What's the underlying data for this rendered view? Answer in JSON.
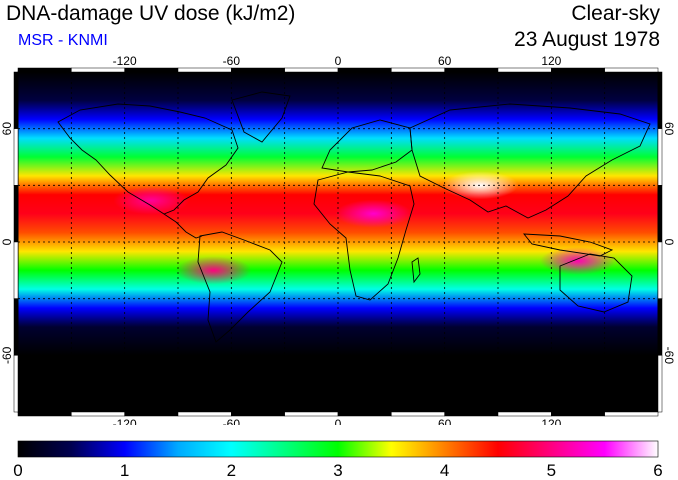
{
  "header": {
    "title": "DNA-damage UV dose (kJ/m2)",
    "subtitle": "MSR - KNMI",
    "condition": "Clear-sky",
    "date": "23 August 1978"
  },
  "map": {
    "projection": "equirectangular",
    "lon_range": [
      -180,
      180
    ],
    "lat_range": [
      -90,
      90
    ],
    "grid_lon_step": 30,
    "grid_lat_step": 30,
    "grid_style": "dotted",
    "lon_ticks": [
      -120,
      -60,
      0,
      60,
      120
    ],
    "lon_tick_labels": [
      "-120",
      "-60",
      "0",
      "60",
      "120"
    ],
    "lat_ticks": [
      60,
      0,
      -60
    ],
    "lat_tick_labels": [
      "60",
      "0",
      "-60"
    ],
    "field_description_note": "",
    "dose_bands": [
      {
        "lat": 90,
        "value": 0.0
      },
      {
        "lat": 75,
        "value": 0.4
      },
      {
        "lat": 65,
        "value": 1.0
      },
      {
        "lat": 55,
        "value": 1.8
      },
      {
        "lat": 45,
        "value": 2.8
      },
      {
        "lat": 35,
        "value": 3.6
      },
      {
        "lat": 25,
        "value": 4.5
      },
      {
        "lat": 15,
        "value": 4.6
      },
      {
        "lat": 5,
        "value": 4.2
      },
      {
        "lat": -5,
        "value": 3.6
      },
      {
        "lat": -15,
        "value": 3.0
      },
      {
        "lat": -25,
        "value": 2.1
      },
      {
        "lat": -35,
        "value": 1.0
      },
      {
        "lat": -45,
        "value": 0.3
      },
      {
        "lat": -60,
        "value": 0.0
      },
      {
        "lat": -90,
        "value": 0.0
      }
    ],
    "hotspots": [
      {
        "lon": 80,
        "lat": 30,
        "value": 6.0
      },
      {
        "lon": 20,
        "lat": 15,
        "value": 5.3
      },
      {
        "lon": -105,
        "lat": 22,
        "value": 5.1
      },
      {
        "lon": 135,
        "lat": -10,
        "value": 5.2
      },
      {
        "lon": -70,
        "lat": -15,
        "value": 5.0
      }
    ]
  },
  "colorbar": {
    "min": 0,
    "max": 6,
    "tick_labels": [
      "0",
      "1",
      "2",
      "3",
      "4",
      "5",
      "6"
    ],
    "stops": [
      {
        "value": 0.0,
        "color": "#000000"
      },
      {
        "value": 0.5,
        "color": "#000050"
      },
      {
        "value": 1.0,
        "color": "#0000ff"
      },
      {
        "value": 1.5,
        "color": "#00aaff"
      },
      {
        "value": 2.0,
        "color": "#00ffff"
      },
      {
        "value": 2.5,
        "color": "#00ff80"
      },
      {
        "value": 3.0,
        "color": "#00ff00"
      },
      {
        "value": 3.5,
        "color": "#ffff00"
      },
      {
        "value": 4.0,
        "color": "#ff8000"
      },
      {
        "value": 4.5,
        "color": "#ff0000"
      },
      {
        "value": 5.0,
        "color": "#ff0080"
      },
      {
        "value": 5.5,
        "color": "#ff00ff"
      },
      {
        "value": 6.0,
        "color": "#ffffff"
      }
    ]
  }
}
